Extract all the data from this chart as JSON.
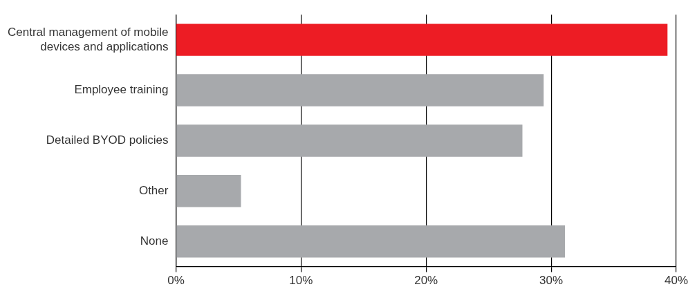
{
  "chart_data": {
    "type": "bar",
    "orientation": "horizontal",
    "categories": [
      "Central management of mobile devices and applications",
      "Employee training",
      "Detailed BYOD policies",
      "Other",
      "None"
    ],
    "values": [
      39.3,
      29.4,
      27.7,
      5.2,
      31.1
    ],
    "colors": [
      "#ed1c24",
      "#a7a9ac",
      "#a7a9ac",
      "#a7a9ac",
      "#a7a9ac"
    ],
    "xlim": [
      0,
      40
    ],
    "xticks": [
      {
        "value": 0,
        "label": "0%"
      },
      {
        "value": 10,
        "label": "10%"
      },
      {
        "value": 20,
        "label": "20%"
      },
      {
        "value": 30,
        "label": "30%"
      },
      {
        "value": 40,
        "label": "40%"
      }
    ],
    "grid": "x",
    "legend": false
  }
}
